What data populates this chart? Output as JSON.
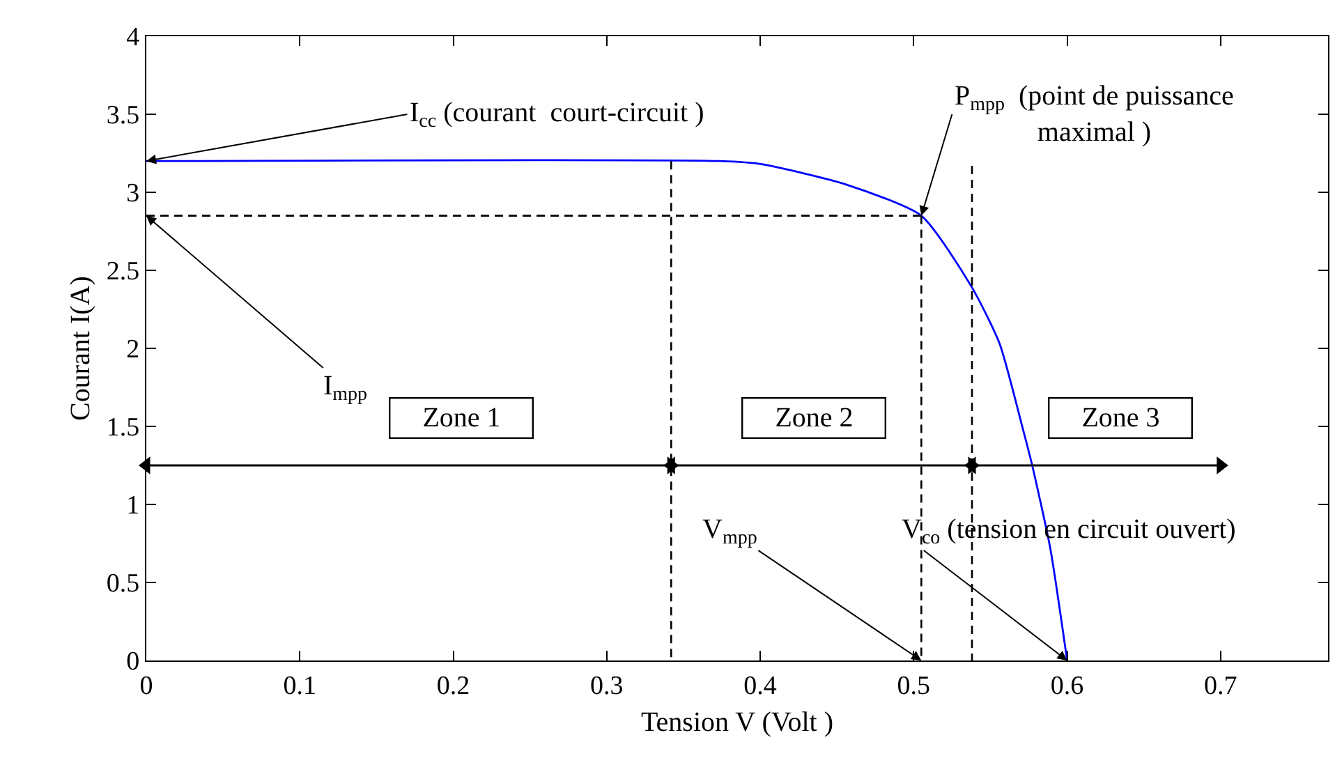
{
  "chart_data": {
    "type": "line",
    "xlabel": "Tension V (Volt )",
    "ylabel": "Courant I(A)",
    "xlim": [
      0,
      0.77
    ],
    "ylim": [
      0,
      4
    ],
    "xticks": [
      0,
      0.1,
      0.2,
      0.3,
      0.4,
      0.5,
      0.6,
      0.7
    ],
    "yticks": [
      0,
      0.5,
      1,
      1.5,
      2,
      2.5,
      3,
      3.5,
      4
    ],
    "marker": "none",
    "series": [
      {
        "color": "#0000ff",
        "line_style": "solid",
        "x": [
          0,
          0.374,
          0.401,
          0.456,
          0.505,
          0.538,
          0.556,
          0.571,
          0.577,
          0.589,
          0.6
        ],
        "values": [
          3.2,
          3.2,
          3.18,
          3.05,
          2.85,
          2.39,
          2.03,
          1.49,
          1.26,
          0.72,
          0
        ]
      },
      {
        "color": "#000000",
        "line_style": "dashed",
        "x": [
          0,
          0.505
        ],
        "values": [
          2.85,
          2.85
        ]
      },
      {
        "color": "#000000",
        "line_style": "dashed",
        "x": [
          0.342,
          0.342
        ],
        "values": [
          3.2,
          0
        ]
      },
      {
        "color": "#000000",
        "line_style": "dashed",
        "x": [
          0.505,
          0.505
        ],
        "values": [
          2.85,
          0
        ]
      },
      {
        "color": "#000000",
        "line_style": "dashed",
        "x": [
          0.538,
          0.538
        ],
        "values": [
          3.17,
          0
        ]
      },
      {
        "color": "#000000",
        "line_style": "solid",
        "marker": "triangle",
        "x": [
          0,
          0.342
        ],
        "values": [
          1.25,
          1.25
        ]
      },
      {
        "color": "#000000",
        "line_style": "solid",
        "marker": "triangle",
        "x": [
          0.342,
          0.538
        ],
        "values": [
          1.25,
          1.25
        ]
      },
      {
        "color": "#000000",
        "line_style": "solid",
        "marker": "triangle",
        "x": [
          0.538,
          0.7
        ],
        "values": [
          1.25,
          1.25
        ]
      }
    ],
    "annotations": [
      {
        "text": "I$_{cc}$ (courant  court-circuit )",
        "x": 0,
        "y": 3.2
      },
      {
        "text": "I$_{mpp}$",
        "x": 0,
        "y": 2.85
      },
      {
        "text": "P$_{mpp}$  (point de puissance\nmaximal )",
        "x": 0.505,
        "y": 2.85
      },
      {
        "text": "V$_{mpp}$",
        "x": 0.505,
        "y": 0
      },
      {
        "text": "V$_{co}$ (tension en circuit ouvert)",
        "x": 0.6,
        "y": 0
      },
      "Zone 1",
      "Zone 2",
      "Zone 3"
    ]
  }
}
